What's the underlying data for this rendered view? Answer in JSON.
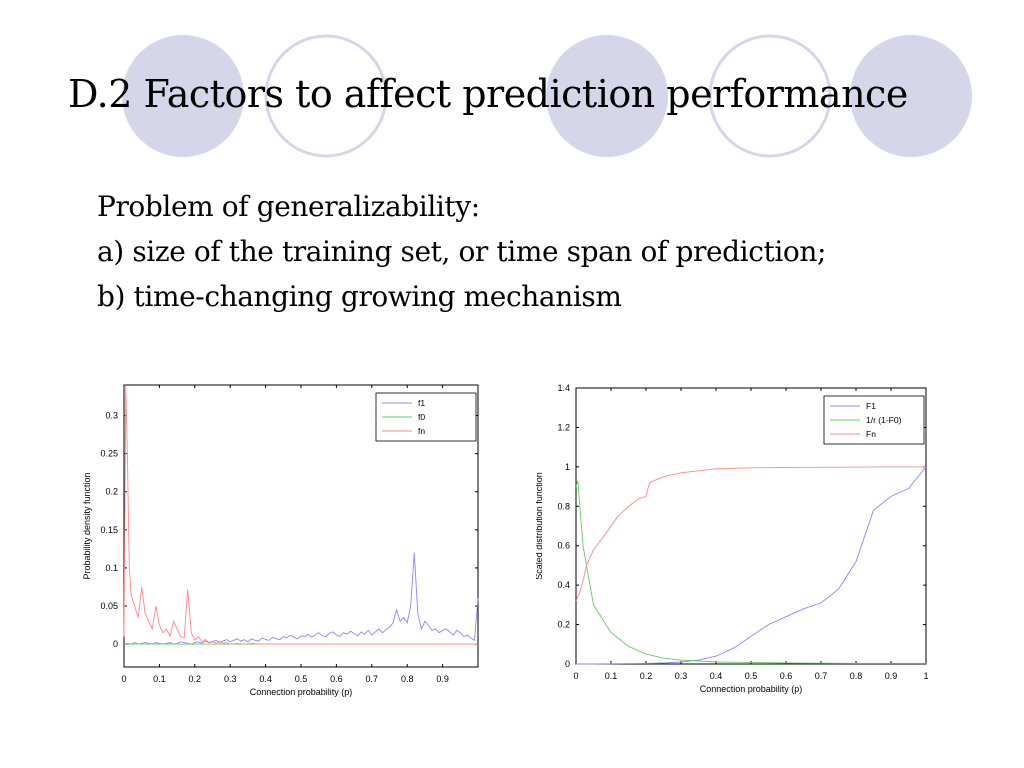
{
  "slide": {
    "title": "D.2 Factors to affect prediction performance",
    "bullets": [
      "Problem of generalizability:",
      "a) size of the training set, or time span of prediction;",
      "b) time-changing growing mechanism"
    ],
    "colors": {
      "decor_fill": "#d6d6ea",
      "decor_stroke": "#d6d6ea"
    }
  },
  "chart_data": [
    {
      "type": "line",
      "xlabel": "Connection probability (p)",
      "ylabel": "Probability density function",
      "xlim": [
        0,
        1
      ],
      "ylim": [
        -0.03,
        0.34
      ],
      "xticks": [
        0,
        0.1,
        0.2,
        0.3,
        0.4,
        0.5,
        0.6,
        0.7,
        0.8,
        0.9
      ],
      "xtick_labels": [
        "0",
        "0.1",
        "0.2",
        "0.3",
        "0.4",
        "0.5",
        "0.6",
        "0.7",
        "0.8",
        "0.9"
      ],
      "yticks": [
        0,
        0.05,
        0.1,
        0.15,
        0.2,
        0.25,
        0.3
      ],
      "ytick_labels": [
        "0",
        "0.05",
        "0.1",
        "0.15",
        "0.2",
        "0.25",
        "0.3"
      ],
      "legend_position": "top-right",
      "series": [
        {
          "name": "f1",
          "color": "#8888ff",
          "x": [
            0,
            0.01,
            0.02,
            0.03,
            0.04,
            0.05,
            0.06,
            0.07,
            0.08,
            0.09,
            0.1,
            0.11,
            0.12,
            0.13,
            0.14,
            0.15,
            0.16,
            0.17,
            0.18,
            0.19,
            0.2,
            0.21,
            0.22,
            0.23,
            0.24,
            0.25,
            0.26,
            0.27,
            0.28,
            0.29,
            0.3,
            0.31,
            0.32,
            0.33,
            0.34,
            0.35,
            0.36,
            0.37,
            0.38,
            0.39,
            0.4,
            0.41,
            0.42,
            0.43,
            0.44,
            0.45,
            0.46,
            0.47,
            0.48,
            0.49,
            0.5,
            0.51,
            0.52,
            0.53,
            0.54,
            0.55,
            0.56,
            0.57,
            0.58,
            0.59,
            0.6,
            0.61,
            0.62,
            0.63,
            0.64,
            0.65,
            0.66,
            0.67,
            0.68,
            0.69,
            0.7,
            0.71,
            0.72,
            0.73,
            0.74,
            0.75,
            0.76,
            0.77,
            0.78,
            0.79,
            0.8,
            0.81,
            0.82,
            0.83,
            0.84,
            0.85,
            0.86,
            0.87,
            0.88,
            0.89,
            0.9,
            0.91,
            0.92,
            0.93,
            0.94,
            0.95,
            0.96,
            0.97,
            0.98,
            0.99,
            1.0
          ],
          "y": [
            0,
            0.001,
            0,
            0.002,
            0,
            0.001,
            0.002,
            0.001,
            0,
            0.002,
            0.001,
            0,
            0.001,
            0.002,
            0,
            0.001,
            0.003,
            0.002,
            0.001,
            0,
            0.002,
            0.003,
            0.001,
            0.004,
            0.002,
            0.003,
            0.005,
            0.002,
            0.004,
            0.006,
            0.003,
            0.005,
            0.007,
            0.004,
            0.006,
            0.003,
            0.007,
            0.005,
            0.004,
            0.008,
            0.006,
            0.005,
            0.009,
            0.007,
            0.006,
            0.01,
            0.008,
            0.012,
            0.009,
            0.007,
            0.011,
            0.01,
            0.013,
            0.009,
            0.012,
            0.015,
            0.011,
            0.01,
            0.014,
            0.016,
            0.012,
            0.01,
            0.015,
            0.013,
            0.017,
            0.014,
            0.011,
            0.016,
            0.013,
            0.018,
            0.012,
            0.016,
            0.02,
            0.015,
            0.019,
            0.022,
            0.028,
            0.045,
            0.03,
            0.035,
            0.028,
            0.05,
            0.12,
            0.04,
            0.02,
            0.03,
            0.025,
            0.018,
            0.02,
            0.015,
            0.018,
            0.02,
            0.016,
            0.012,
            0.018,
            0.015,
            0.01,
            0.012,
            0.008,
            0.005,
            0.06
          ]
        },
        {
          "name": "f0",
          "color": "#66cc66",
          "x": [
            0,
            0.05,
            0.1,
            0.2,
            0.3,
            0.4,
            0.5,
            0.6,
            0.7,
            0.8,
            0.9,
            1.0
          ],
          "y": [
            0,
            0,
            0,
            0,
            0,
            0,
            0,
            0,
            0,
            0,
            0,
            0
          ]
        },
        {
          "name": "fn",
          "color": "#ff8888",
          "x": [
            0,
            0.005,
            0.01,
            0.015,
            0.02,
            0.03,
            0.04,
            0.05,
            0.06,
            0.07,
            0.08,
            0.09,
            0.1,
            0.11,
            0.12,
            0.13,
            0.14,
            0.15,
            0.16,
            0.17,
            0.18,
            0.19,
            0.2,
            0.21,
            0.22,
            0.23,
            0.24,
            0.25,
            0.26,
            0.27,
            0.28,
            0.29,
            0.3,
            0.32,
            0.34,
            0.36,
            0.38,
            0.4,
            0.45,
            0.5,
            0.55,
            0.6,
            0.7,
            0.8,
            0.9,
            1.0
          ],
          "y": [
            0.01,
            0.34,
            0.24,
            0.1,
            0.065,
            0.05,
            0.035,
            0.075,
            0.04,
            0.03,
            0.02,
            0.05,
            0.025,
            0.015,
            0.02,
            0.01,
            0.03,
            0.02,
            0.01,
            0.008,
            0.072,
            0.015,
            0.005,
            0.01,
            0.003,
            0.006,
            0.002,
            0.004,
            0.001,
            0.003,
            0.001,
            0.002,
            0,
            0.001,
            0,
            0.001,
            0,
            0,
            0,
            0,
            0,
            0,
            0,
            0,
            0,
            0
          ]
        }
      ]
    },
    {
      "type": "line",
      "xlabel": "Connection probability (p)",
      "ylabel": "Scaled distribution function",
      "xlim": [
        0,
        1
      ],
      "ylim": [
        0,
        1.4
      ],
      "xticks": [
        0,
        0.1,
        0.2,
        0.3,
        0.4,
        0.5,
        0.6,
        0.7,
        0.8,
        0.9,
        1
      ],
      "xtick_labels": [
        "0",
        "0.1",
        "0.2",
        "0.3",
        "0.4",
        "0.5",
        "0.6",
        "0.7",
        "0.8",
        "0.9",
        "1"
      ],
      "yticks": [
        0,
        0.2,
        0.4,
        0.6,
        0.8,
        1,
        1.2,
        1.4
      ],
      "ytick_labels": [
        "0",
        "0.2",
        "0.4",
        "0.6",
        "0.8",
        "1",
        "1.2",
        "1.4"
      ],
      "legend_position": "top-right",
      "series": [
        {
          "name": "F1",
          "color": "#8888ff",
          "x": [
            0,
            0.05,
            0.1,
            0.15,
            0.2,
            0.25,
            0.3,
            0.35,
            0.4,
            0.45,
            0.5,
            0.55,
            0.6,
            0.65,
            0.7,
            0.75,
            0.8,
            0.85,
            0.9,
            0.95,
            1.0
          ],
          "y": [
            0,
            0,
            0.001,
            0.002,
            0.003,
            0.005,
            0.01,
            0.02,
            0.04,
            0.08,
            0.14,
            0.2,
            0.24,
            0.28,
            0.31,
            0.38,
            0.52,
            0.78,
            0.85,
            0.89,
            1.0
          ]
        },
        {
          "name": "1/r (1-F0)",
          "color": "#66cc66",
          "x": [
            0,
            0.005,
            0.02,
            0.05,
            0.1,
            0.15,
            0.2,
            0.25,
            0.3,
            0.35,
            0.4,
            0.5,
            0.6,
            0.7,
            0.8,
            0.9,
            1.0
          ],
          "y": [
            0.9,
            0.93,
            0.6,
            0.3,
            0.16,
            0.09,
            0.05,
            0.03,
            0.02,
            0.015,
            0.01,
            0.008,
            0.005,
            0.004,
            0.003,
            0.003,
            0.003
          ]
        },
        {
          "name": "Fn",
          "color": "#ff8888",
          "x": [
            0,
            0.01,
            0.02,
            0.03,
            0.05,
            0.08,
            0.1,
            0.12,
            0.15,
            0.18,
            0.2,
            0.21,
            0.25,
            0.3,
            0.35,
            0.4,
            0.5,
            0.6,
            0.7,
            0.8,
            0.9,
            1.0
          ],
          "y": [
            0.32,
            0.36,
            0.42,
            0.5,
            0.58,
            0.65,
            0.7,
            0.75,
            0.8,
            0.84,
            0.85,
            0.92,
            0.95,
            0.97,
            0.98,
            0.99,
            0.995,
            0.997,
            0.998,
            0.999,
            1.0,
            1.0
          ]
        }
      ]
    }
  ]
}
